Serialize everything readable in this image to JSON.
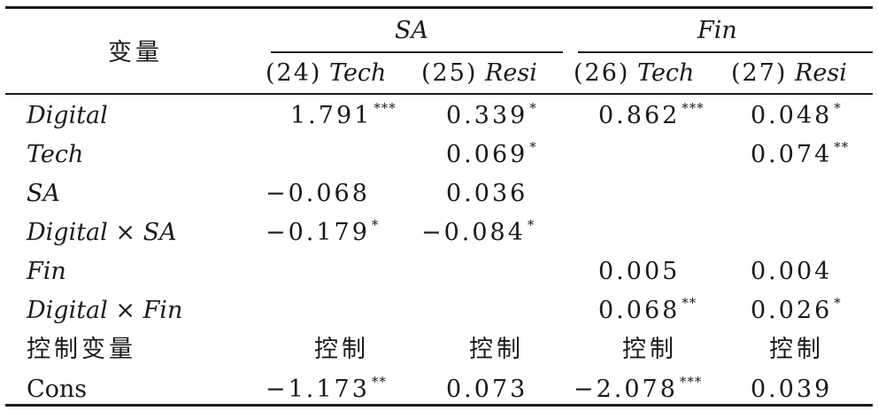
{
  "table": {
    "header": {
      "var_label": "变量",
      "group_sa": "SA",
      "group_fin": "Fin",
      "cols": [
        {
          "num": "(24)",
          "name": "Tech"
        },
        {
          "num": "(25)",
          "name": "Resi"
        },
        {
          "num": "(26)",
          "name": "Tech"
        },
        {
          "num": "(27)",
          "name": "Resi"
        }
      ]
    },
    "rows": [
      {
        "label": "Digital",
        "italic": true,
        "cells": [
          {
            "v": "1.791",
            "s": "***"
          },
          {
            "v": "0.339",
            "s": "*"
          },
          {
            "v": "0.862",
            "s": "***"
          },
          {
            "v": "0.048",
            "s": "*"
          }
        ]
      },
      {
        "label": "Tech",
        "italic": true,
        "cells": [
          {
            "v": "",
            "s": ""
          },
          {
            "v": "0.069",
            "s": "*"
          },
          {
            "v": "",
            "s": ""
          },
          {
            "v": "0.074",
            "s": "**"
          }
        ]
      },
      {
        "label": "SA",
        "italic": true,
        "cells": [
          {
            "v": "−0.068",
            "s": ""
          },
          {
            "v": "0.036",
            "s": ""
          },
          {
            "v": "",
            "s": ""
          },
          {
            "v": "",
            "s": ""
          }
        ]
      },
      {
        "label": "Digital × SA",
        "italic": true,
        "cells": [
          {
            "v": "−0.179",
            "s": "*"
          },
          {
            "v": "−0.084",
            "s": "*"
          },
          {
            "v": "",
            "s": ""
          },
          {
            "v": "",
            "s": ""
          }
        ]
      },
      {
        "label": "Fin",
        "italic": true,
        "cells": [
          {
            "v": "",
            "s": ""
          },
          {
            "v": "",
            "s": ""
          },
          {
            "v": "0.005",
            "s": ""
          },
          {
            "v": "0.004",
            "s": ""
          }
        ]
      },
      {
        "label": "Digital × Fin",
        "italic": true,
        "cells": [
          {
            "v": "",
            "s": ""
          },
          {
            "v": "",
            "s": ""
          },
          {
            "v": "0.068",
            "s": "**"
          },
          {
            "v": "0.026",
            "s": "*"
          }
        ]
      },
      {
        "label": "控制变量",
        "italic": false,
        "cjk": true,
        "cells": [
          {
            "v": "控制",
            "s": "",
            "cjk": true
          },
          {
            "v": "控制",
            "s": "",
            "cjk": true
          },
          {
            "v": "控制",
            "s": "",
            "cjk": true
          },
          {
            "v": "控制",
            "s": "",
            "cjk": true
          }
        ]
      },
      {
        "label": "Cons",
        "italic": false,
        "cells": [
          {
            "v": "−1.173",
            "s": "**"
          },
          {
            "v": "0.073",
            "s": ""
          },
          {
            "v": "−2.078",
            "s": "***"
          },
          {
            "v": "0.039",
            "s": ""
          }
        ]
      }
    ]
  }
}
